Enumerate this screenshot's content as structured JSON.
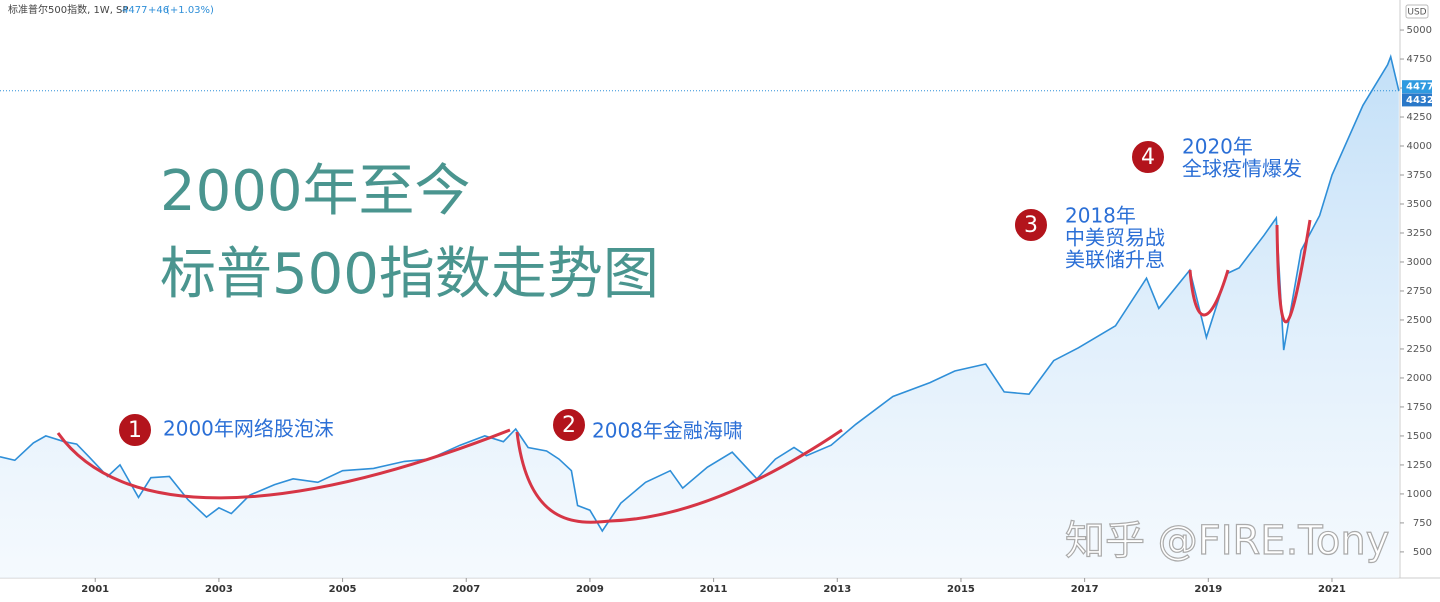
{
  "chart_data": {
    "type": "line",
    "header": {
      "symbol": "标准普尔500指数, 1W, SP",
      "last": "4477",
      "change": "+46",
      "change_pct": "(+1.03%)"
    },
    "currency": "USD",
    "title_lines": [
      "2000年至今",
      "标普500指数走势图"
    ],
    "annotations": [
      {
        "number": "1",
        "lines": [
          "2000年网络股泡沫"
        ]
      },
      {
        "number": "2",
        "lines": [
          "2008年金融海啸"
        ]
      },
      {
        "number": "3",
        "lines": [
          "2018年",
          "中美贸易战",
          "美联储升息"
        ]
      },
      {
        "number": "4",
        "lines": [
          "2020年",
          "全球疫情爆发"
        ]
      }
    ],
    "watermark": "知乎 @FIRE.Tony",
    "color": "#2f8fd8",
    "x": [
      1999.46,
      1999.7,
      2000.0,
      2000.2,
      2000.5,
      2000.7,
      2000.9,
      2001.2,
      2001.4,
      2001.7,
      2001.9,
      2002.2,
      2002.5,
      2002.8,
      2003.0,
      2003.2,
      2003.5,
      2003.9,
      2004.2,
      2004.6,
      2005.0,
      2005.5,
      2006.0,
      2006.4,
      2006.9,
      2007.3,
      2007.6,
      2007.8,
      2008.0,
      2008.3,
      2008.5,
      2008.7,
      2008.8,
      2009.0,
      2009.2,
      2009.5,
      2009.9,
      2010.3,
      2010.5,
      2010.9,
      2011.3,
      2011.7,
      2012.0,
      2012.3,
      2012.5,
      2012.9,
      2013.3,
      2013.9,
      2014.5,
      2014.9,
      2015.4,
      2015.7,
      2016.1,
      2016.5,
      2016.9,
      2017.5,
      2018.0,
      2018.2,
      2018.7,
      2018.97,
      2019.3,
      2019.5,
      2019.9,
      2020.1,
      2020.22,
      2020.5,
      2020.8,
      2021.0,
      2021.5,
      2021.9,
      2021.95,
      2022.08
    ],
    "values": [
      1320,
      1290,
      1440,
      1500,
      1450,
      1430,
      1320,
      1150,
      1250,
      970,
      1140,
      1150,
      950,
      800,
      880,
      830,
      990,
      1080,
      1130,
      1100,
      1200,
      1220,
      1280,
      1300,
      1420,
      1500,
      1450,
      1560,
      1400,
      1370,
      1300,
      1200,
      900,
      860,
      680,
      920,
      1100,
      1200,
      1050,
      1230,
      1360,
      1130,
      1300,
      1400,
      1330,
      1420,
      1600,
      1840,
      1960,
      2060,
      2120,
      1880,
      1860,
      2150,
      2260,
      2450,
      2860,
      2600,
      2930,
      2350,
      2900,
      2950,
      3230,
      3380,
      2240,
      3100,
      3400,
      3750,
      4350,
      4700,
      4770,
      4477
    ],
    "price_labels": [
      4477,
      4432
    ],
    "xlim": [
      1999.46,
      2022.1
    ],
    "xticks": [
      2001,
      2003,
      2005,
      2007,
      2009,
      2011,
      2013,
      2015,
      2017,
      2019,
      2021
    ],
    "ylim": [
      275,
      5259
    ],
    "yticks": [
      500,
      750,
      1000,
      1250,
      1500,
      1750,
      2000,
      2250,
      2500,
      2750,
      3000,
      3250,
      3500,
      3750,
      4000,
      4250,
      4500,
      4750,
      5000
    ]
  }
}
